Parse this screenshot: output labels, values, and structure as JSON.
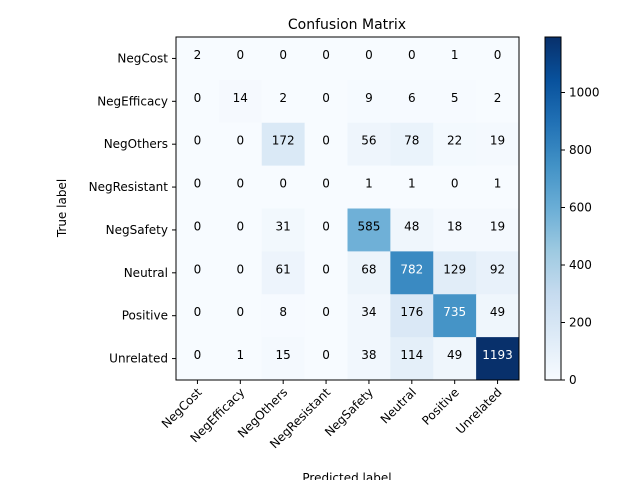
{
  "chart_data": {
    "type": "heatmap",
    "title": "Confusion Matrix",
    "xlabel": "Predicted label",
    "ylabel": "True label",
    "row_labels": [
      "NegCost",
      "NegEfficacy",
      "NegOthers",
      "NegResistant",
      "NegSafety",
      "Neutral",
      "Positive",
      "Unrelated"
    ],
    "col_labels": [
      "NegCost",
      "NegEfficacy",
      "NegOthers",
      "NegResistant",
      "NegSafety",
      "Neutral",
      "Positive",
      "Unrelated"
    ],
    "values": [
      [
        2,
        0,
        0,
        0,
        0,
        0,
        1,
        0
      ],
      [
        0,
        14,
        2,
        0,
        9,
        6,
        5,
        2
      ],
      [
        0,
        0,
        172,
        0,
        56,
        78,
        22,
        19
      ],
      [
        0,
        0,
        0,
        0,
        1,
        1,
        0,
        1
      ],
      [
        0,
        0,
        31,
        0,
        585,
        48,
        18,
        19
      ],
      [
        0,
        0,
        61,
        0,
        68,
        782,
        129,
        92
      ],
      [
        0,
        0,
        8,
        0,
        34,
        176,
        735,
        49
      ],
      [
        0,
        1,
        15,
        0,
        38,
        114,
        49,
        1193
      ]
    ],
    "colormap": "Blues",
    "colorbar": {
      "ticks": [
        0,
        200,
        400,
        600,
        800,
        1000
      ],
      "range": [
        0,
        1193
      ]
    },
    "grid": false
  }
}
